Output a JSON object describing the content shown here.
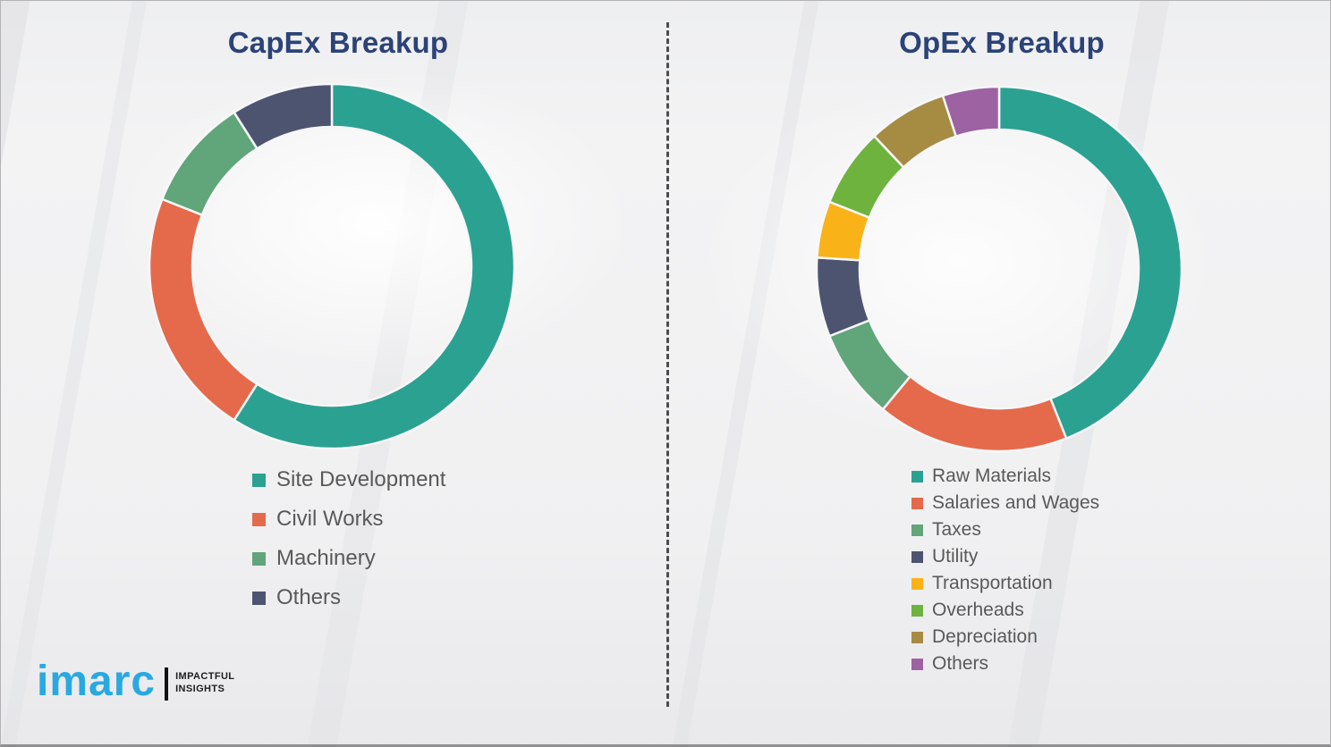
{
  "page": {
    "background_color": "#f3f3f4",
    "divider_color": "#4c4c4e",
    "title_color": "#2b4377",
    "legend_text_color": "#595959",
    "segment_gap_color": "#f7f7f8"
  },
  "logo": {
    "brand": "imarc",
    "tagline_line1": "IMPACTFUL",
    "tagline_line2": "INSIGHTS",
    "brand_color": "#29a9e1",
    "tagline_color": "#1d1d1d",
    "bar_color": "#111111"
  },
  "chart_data": [
    {
      "type": "pie",
      "subtype": "donut",
      "title": "CapEx Breakup",
      "categories": [
        "Site Development",
        "Civil Works",
        "Machinery",
        "Others"
      ],
      "values": [
        59,
        22,
        10,
        9
      ],
      "unit": "percent-estimated",
      "colors": [
        "#2ba192",
        "#e56a4b",
        "#61a57b",
        "#4d5470"
      ],
      "start_angle_deg": 0,
      "direction": "clockwise",
      "legend_position": "below-left",
      "data_labels": false
    },
    {
      "type": "pie",
      "subtype": "donut",
      "title": "OpEx Breakup",
      "categories": [
        "Raw Materials",
        "Salaries and Wages",
        "Taxes",
        "Utility",
        "Transportation",
        "Overheads",
        "Depreciation",
        "Others"
      ],
      "values": [
        44,
        17,
        8,
        7,
        5,
        7,
        7,
        5
      ],
      "unit": "percent-estimated",
      "colors": [
        "#2ba192",
        "#e56a4b",
        "#61a57b",
        "#4d5470",
        "#f9b218",
        "#6fb33f",
        "#a68b43",
        "#9d62a2"
      ],
      "start_angle_deg": 0,
      "direction": "clockwise",
      "legend_position": "below-left",
      "data_labels": false
    }
  ]
}
